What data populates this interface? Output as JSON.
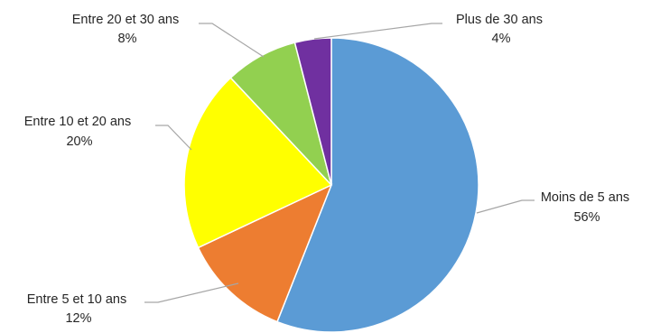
{
  "chart_data": {
    "type": "pie",
    "title": "",
    "start_angle_deg": 0,
    "direction": "clockwise",
    "slices": [
      {
        "label": "Moins de 5 ans",
        "percent_label": "56%",
        "value": 56,
        "color": "#5b9bd5"
      },
      {
        "label": "Entre 5 et 10 ans",
        "percent_label": "12%",
        "value": 12,
        "color": "#ed7d31"
      },
      {
        "label": "Entre 10 et 20 ans",
        "percent_label": "20%",
        "value": 20,
        "color": "#ffff00"
      },
      {
        "label": "Entre 20 et 30 ans",
        "percent_label": "8%",
        "value": 8,
        "color": "#92d050"
      },
      {
        "label": "Plus de 30 ans",
        "percent_label": "4%",
        "value": 4,
        "color": "#7030a0"
      }
    ]
  }
}
